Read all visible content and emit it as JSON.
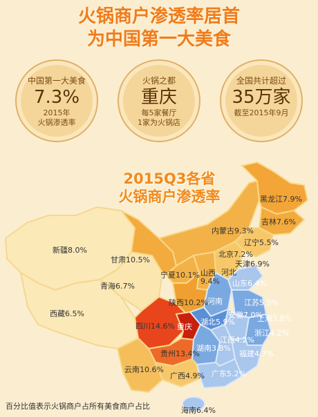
{
  "headline": {
    "line1": "火锅商户渗透率居首",
    "line2": "为中国第一大美食"
  },
  "stats": [
    {
      "top": "中国第一大美食",
      "big": "7.3%",
      "sub1": "2015年",
      "sub2": "火锅渗透率"
    },
    {
      "top": "火锅之都",
      "big": "重庆",
      "sub1": "每5家餐厅",
      "sub2": "1家为火锅店"
    },
    {
      "top": "全国共计超过",
      "big": "35万家",
      "sub1": "截至2015年9月",
      "sub2": ""
    }
  ],
  "map_title": {
    "line1": "2015Q3各省",
    "line2": "火锅商户渗透率"
  },
  "provinces": {
    "heilongjiang": "黑龙江7.9%",
    "jilin": "吉林7.6%",
    "liaoning": "辽宁5.5%",
    "neimenggu": "内蒙古9.3%",
    "xinjiang": "新疆8.0%",
    "gansu": "甘肃10.5%",
    "qinghai": "青海6.7%",
    "xizang": "西藏6.5%",
    "ningxia": "宁夏10.1%",
    "shanxi": "山西",
    "shanxi_val": "9.4%",
    "beijing": "北京7.2%",
    "tianjin": "天津6.9%",
    "hebei": "河北",
    "shandong": "山东6.4%",
    "shaanxi": "陕西10.2%",
    "henan": "河南",
    "jiangsu": "江苏5.5%",
    "anhui": "安徽7.0%",
    "shanghai": "上海3.8%",
    "sichuan": "四川14.6%",
    "chongqing": "重庆",
    "hubei": "湖北5.9%",
    "zhejiang": "浙江4.2%",
    "guizhou": "贵州13.4%",
    "hunan": "湖南3.8%",
    "jiangxi": "江西4.2%",
    "fujian": "福建4.7%",
    "yunnan": "云南10.6%",
    "guangxi": "广西4.9%",
    "guangdong": "广东5.2%",
    "hainan": "海南6.4%"
  },
  "footnote": "百分比值表示火锅商户占所有美食商户占比",
  "colors": {
    "background": "#fbeed0",
    "headline": "#f07c1a",
    "high": "#e03a1a",
    "mid_high": "#f0a030",
    "mid": "#f7c86a",
    "low": "#fbe5a8",
    "cool": "#7aa8e0",
    "cool_light": "#a9c6ec"
  }
}
